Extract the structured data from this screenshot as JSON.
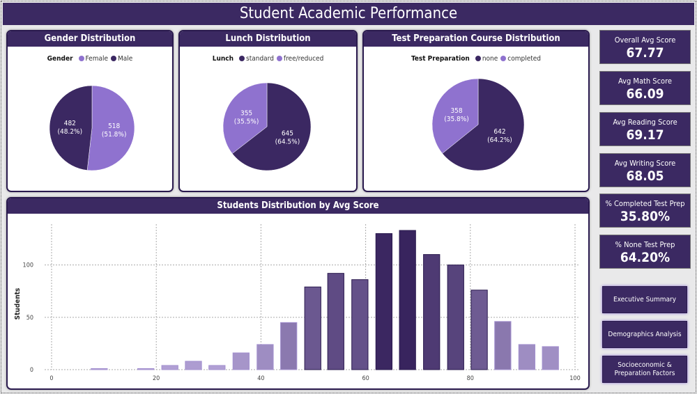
{
  "title": "Student Academic Performance",
  "colors": {
    "dark": "#3b2862",
    "light": "#8f72cf",
    "header": "#3b2962"
  },
  "pies": [
    {
      "title": "Gender Distribution",
      "legend_title": "Gender",
      "slices": [
        {
          "label": "Female",
          "value": 518,
          "pct": "(51.8%)",
          "color": "#8f72cf"
        },
        {
          "label": "Male",
          "value": 482,
          "pct": "(48.2%)",
          "color": "#3b2862"
        }
      ]
    },
    {
      "title": "Lunch Distribution",
      "legend_title": "Lunch",
      "slices": [
        {
          "label": "standard",
          "value": 645,
          "pct": "(64.5%)",
          "color": "#3b2862"
        },
        {
          "label": "free/reduced",
          "value": 355,
          "pct": "(35.5%)",
          "color": "#8f72cf"
        }
      ]
    },
    {
      "title": "Test Preparation Course Distribution",
      "legend_title": "Test Preparation",
      "slices": [
        {
          "label": "none",
          "value": 642,
          "pct": "(64.2%)",
          "color": "#3b2862"
        },
        {
          "label": "completed",
          "value": 358,
          "pct": "(35.8%)",
          "color": "#8f72cf"
        }
      ]
    }
  ],
  "kpis": [
    {
      "label": "Overall Avg Score",
      "value": "67.77"
    },
    {
      "label": "Avg Math Score",
      "value": "66.09"
    },
    {
      "label": "Avg Reading Score",
      "value": "69.17"
    },
    {
      "label": "Avg Writing Score",
      "value": "68.05"
    },
    {
      "label": "% Completed Test Prep",
      "value": "35.80%"
    },
    {
      "label": "% None Test Prep",
      "value": "64.20%"
    }
  ],
  "nav": [
    "Executive Summary",
    "Demographics Analysis",
    "Socioeconomic & Preparation Factors"
  ],
  "chart_data": {
    "type": "bar",
    "title": "Students Distribution by Avg Score",
    "xlabel": "",
    "ylabel": "Students",
    "xlim": [
      0,
      100
    ],
    "ylim": [
      0,
      139
    ],
    "xticks": [
      "0",
      "20",
      "40",
      "60",
      "80",
      "100"
    ],
    "yticks": [
      "0",
      "50",
      "100"
    ],
    "grid": true,
    "x": [
      9.1,
      18.0,
      22.6,
      27.1,
      31.6,
      36.2,
      40.8,
      45.3,
      49.9,
      54.3,
      58.9,
      63.5,
      68.0,
      72.6,
      77.2,
      81.7,
      86.2,
      90.8,
      95.3
    ],
    "values": [
      1,
      1,
      4,
      8,
      4,
      16,
      24,
      45,
      79,
      92,
      86,
      130,
      133,
      110,
      100,
      76,
      46,
      24,
      22
    ]
  }
}
